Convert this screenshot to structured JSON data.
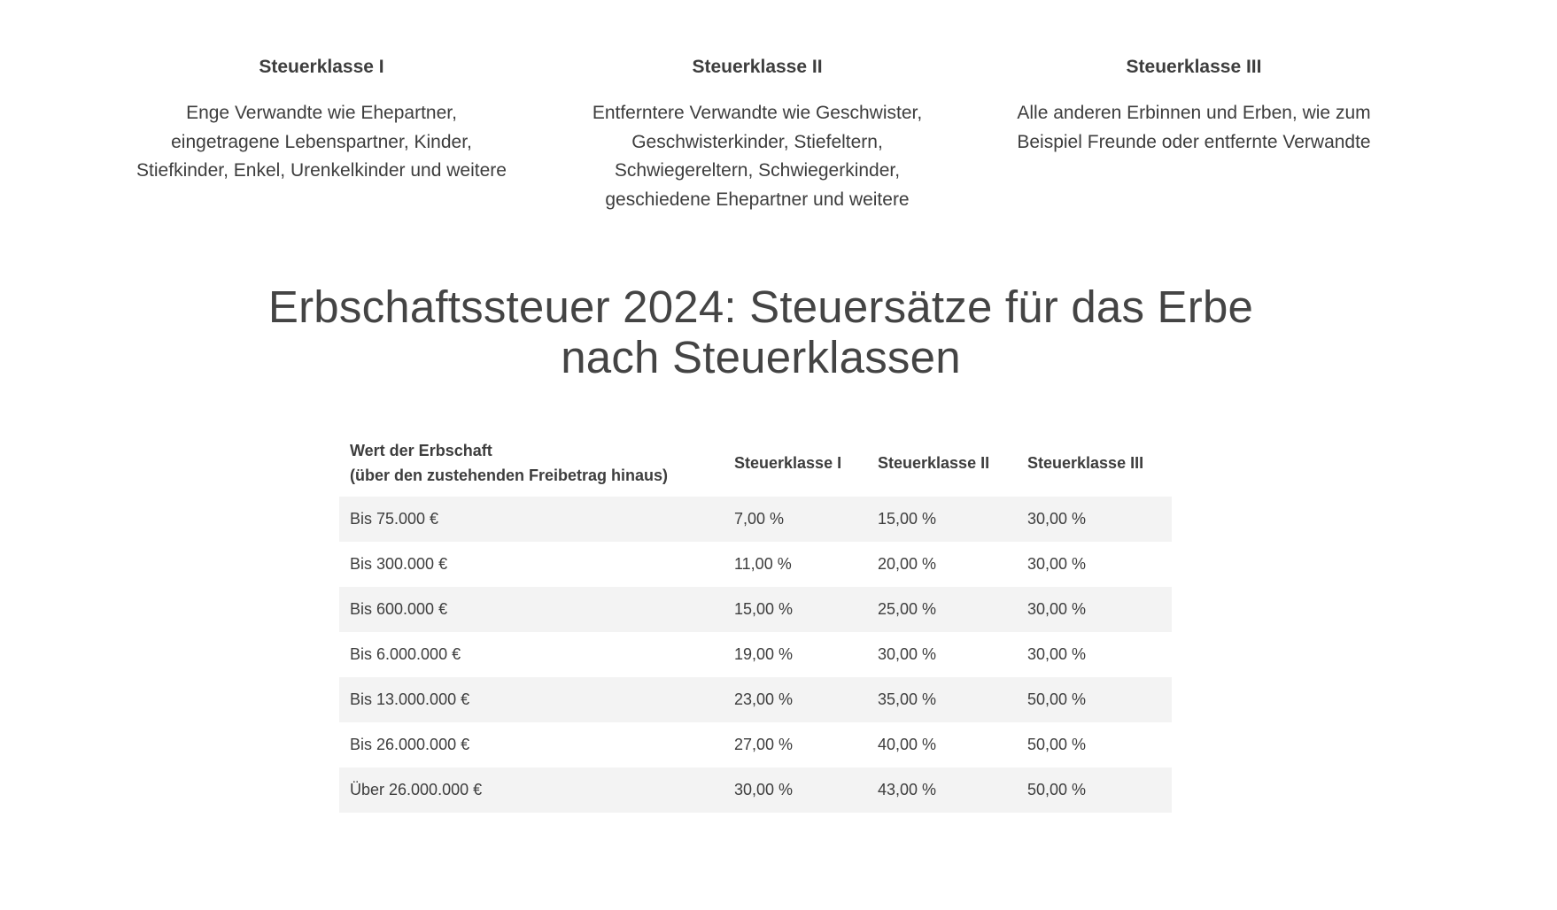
{
  "tax_classes": [
    {
      "title": "Steuerklasse I",
      "lines": [
        "Enge Verwandte wie Ehepartner,",
        "eingetragene Lebenspartner, Kinder,",
        "Stiefkinder, Enkel, Urenkelkinder und weitere"
      ]
    },
    {
      "title": "Steuerklasse II",
      "lines": [
        "Entferntere Verwandte wie Geschwister,",
        "Geschwisterkinder, Stiefeltern,",
        "Schwiegereltern, Schwiegerkinder,",
        "geschiedene Ehepartner und weitere"
      ]
    },
    {
      "title": "Steuerklasse III",
      "lines": [
        "Alle anderen Erbinnen und Erben, wie zum",
        "Beispiel Freunde oder entfernte Verwandte"
      ]
    }
  ],
  "heading": {
    "line1": "Erbschaftssteuer 2024: Steuersätze für das Erbe",
    "line2": "nach Steuerklassen"
  },
  "table": {
    "headers": {
      "wert_line1": "Wert der Erbschaft",
      "wert_line2": "(über den zustehenden Freibetrag hinaus)",
      "k1": "Steuerklasse I",
      "k2": "Steuerklasse II",
      "k3": "Steuerklasse III"
    },
    "rows": [
      [
        "Bis 75.000 €",
        "7,00 %",
        "15,00 %",
        "30,00 %"
      ],
      [
        "Bis 300.000 €",
        "11,00 %",
        "20,00 %",
        "30,00 %"
      ],
      [
        "Bis 600.000 €",
        "15,00 %",
        "25,00 %",
        "30,00 %"
      ],
      [
        "Bis 6.000.000 €",
        "19,00 %",
        "30,00 %",
        "30,00 %"
      ],
      [
        "Bis 13.000.000 €",
        "23,00 %",
        "35,00 %",
        "50,00 %"
      ],
      [
        "Bis 26.000.000 €",
        "27,00 %",
        "40,00 %",
        "50,00 %"
      ],
      [
        "Über 26.000.000 €",
        "30,00 %",
        "43,00 %",
        "50,00 %"
      ]
    ]
  }
}
